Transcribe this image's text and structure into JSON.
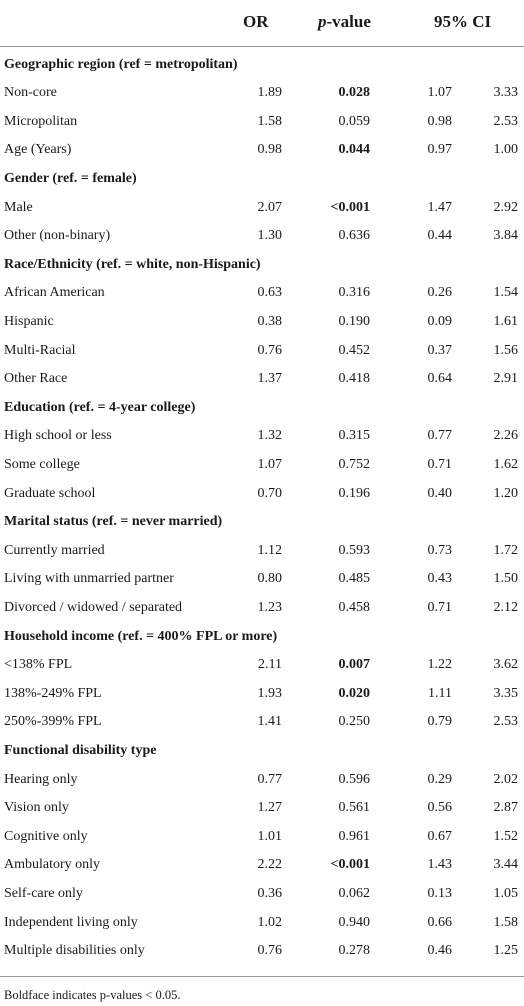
{
  "header": {
    "col_or": "OR",
    "col_p_italic": "p",
    "col_p_rest": "-value",
    "col_ci": "95% CI"
  },
  "rows": [
    {
      "type": "section",
      "label": "Geographic region (ref = metropolitan)"
    },
    {
      "type": "data",
      "label": "Non-core",
      "or": "1.89",
      "p": "0.028",
      "p_bold": true,
      "lo": "1.07",
      "hi": "3.33"
    },
    {
      "type": "data",
      "label": "Micropolitan",
      "or": "1.58",
      "p": "0.059",
      "p_bold": false,
      "lo": "0.98",
      "hi": "2.53"
    },
    {
      "type": "data",
      "label": "Age (Years)",
      "or": "0.98",
      "p": "0.044",
      "p_bold": true,
      "lo": "0.97",
      "hi": "1.00"
    },
    {
      "type": "section",
      "label": "Gender (ref. = female)"
    },
    {
      "type": "data",
      "label": "Male",
      "or": "2.07",
      "p": "<0.001",
      "p_bold": true,
      "lo": "1.47",
      "hi": "2.92"
    },
    {
      "type": "data",
      "label": "Other (non-binary)",
      "or": "1.30",
      "p": "0.636",
      "p_bold": false,
      "lo": "0.44",
      "hi": "3.84"
    },
    {
      "type": "section",
      "label": "Race/Ethnicity (ref. = white, non-Hispanic)"
    },
    {
      "type": "data",
      "label": "African American",
      "or": "0.63",
      "p": "0.316",
      "p_bold": false,
      "lo": "0.26",
      "hi": "1.54"
    },
    {
      "type": "data",
      "label": "Hispanic",
      "or": "0.38",
      "p": "0.190",
      "p_bold": false,
      "lo": "0.09",
      "hi": "1.61"
    },
    {
      "type": "data",
      "label": "Multi-Racial",
      "or": "0.76",
      "p": "0.452",
      "p_bold": false,
      "lo": "0.37",
      "hi": "1.56"
    },
    {
      "type": "data",
      "label": "Other Race",
      "or": "1.37",
      "p": "0.418",
      "p_bold": false,
      "lo": "0.64",
      "hi": "2.91"
    },
    {
      "type": "section",
      "label": "Education (ref. = 4-year college)"
    },
    {
      "type": "data",
      "label": "High school or less",
      "or": "1.32",
      "p": "0.315",
      "p_bold": false,
      "lo": "0.77",
      "hi": "2.26"
    },
    {
      "type": "data",
      "label": "Some college",
      "or": "1.07",
      "p": "0.752",
      "p_bold": false,
      "lo": "0.71",
      "hi": "1.62"
    },
    {
      "type": "data",
      "label": "Graduate school",
      "or": "0.70",
      "p": "0.196",
      "p_bold": false,
      "lo": "0.40",
      "hi": "1.20"
    },
    {
      "type": "section",
      "label": "Marital status (ref. = never married)"
    },
    {
      "type": "data",
      "label": "Currently married",
      "or": "1.12",
      "p": "0.593",
      "p_bold": false,
      "lo": "0.73",
      "hi": "1.72"
    },
    {
      "type": "data",
      "label": "Living with unmarried partner",
      "or": "0.80",
      "p": "0.485",
      "p_bold": false,
      "lo": "0.43",
      "hi": "1.50"
    },
    {
      "type": "data",
      "label": "Divorced / widowed / separated",
      "or": "1.23",
      "p": "0.458",
      "p_bold": false,
      "lo": "0.71",
      "hi": "2.12"
    },
    {
      "type": "section",
      "label": "Household income (ref. = 400% FPL or more)"
    },
    {
      "type": "data",
      "label": "<138% FPL",
      "or": "2.11",
      "p": "0.007",
      "p_bold": true,
      "lo": "1.22",
      "hi": "3.62"
    },
    {
      "type": "data",
      "label": "138%-249% FPL",
      "or": "1.93",
      "p": "0.020",
      "p_bold": true,
      "lo": "1.11",
      "hi": "3.35"
    },
    {
      "type": "data",
      "label": "250%-399% FPL",
      "or": "1.41",
      "p": "0.250",
      "p_bold": false,
      "lo": "0.79",
      "hi": "2.53"
    },
    {
      "type": "section",
      "label": "Functional disability type"
    },
    {
      "type": "data",
      "label": "Hearing only",
      "or": "0.77",
      "p": "0.596",
      "p_bold": false,
      "lo": "0.29",
      "hi": "2.02"
    },
    {
      "type": "data",
      "label": "Vision only",
      "or": "1.27",
      "p": "0.561",
      "p_bold": false,
      "lo": "0.56",
      "hi": "2.87"
    },
    {
      "type": "data",
      "label": "Cognitive only",
      "or": "1.01",
      "p": "0.961",
      "p_bold": false,
      "lo": "0.67",
      "hi": "1.52"
    },
    {
      "type": "data",
      "label": "Ambulatory only",
      "or": "2.22",
      "p": "<0.001",
      "p_bold": true,
      "lo": "1.43",
      "hi": "3.44"
    },
    {
      "type": "data",
      "label": "Self-care only",
      "or": "0.36",
      "p": "0.062",
      "p_bold": false,
      "lo": "0.13",
      "hi": "1.05"
    },
    {
      "type": "data",
      "label": "Independent living only",
      "or": "1.02",
      "p": "0.940",
      "p_bold": false,
      "lo": "0.66",
      "hi": "1.58"
    },
    {
      "type": "data",
      "label": "Multiple disabilities only",
      "or": "0.76",
      "p": "0.278",
      "p_bold": false,
      "lo": "0.46",
      "hi": "1.25"
    }
  ],
  "footnote": "Boldface indicates p-values < 0.05."
}
